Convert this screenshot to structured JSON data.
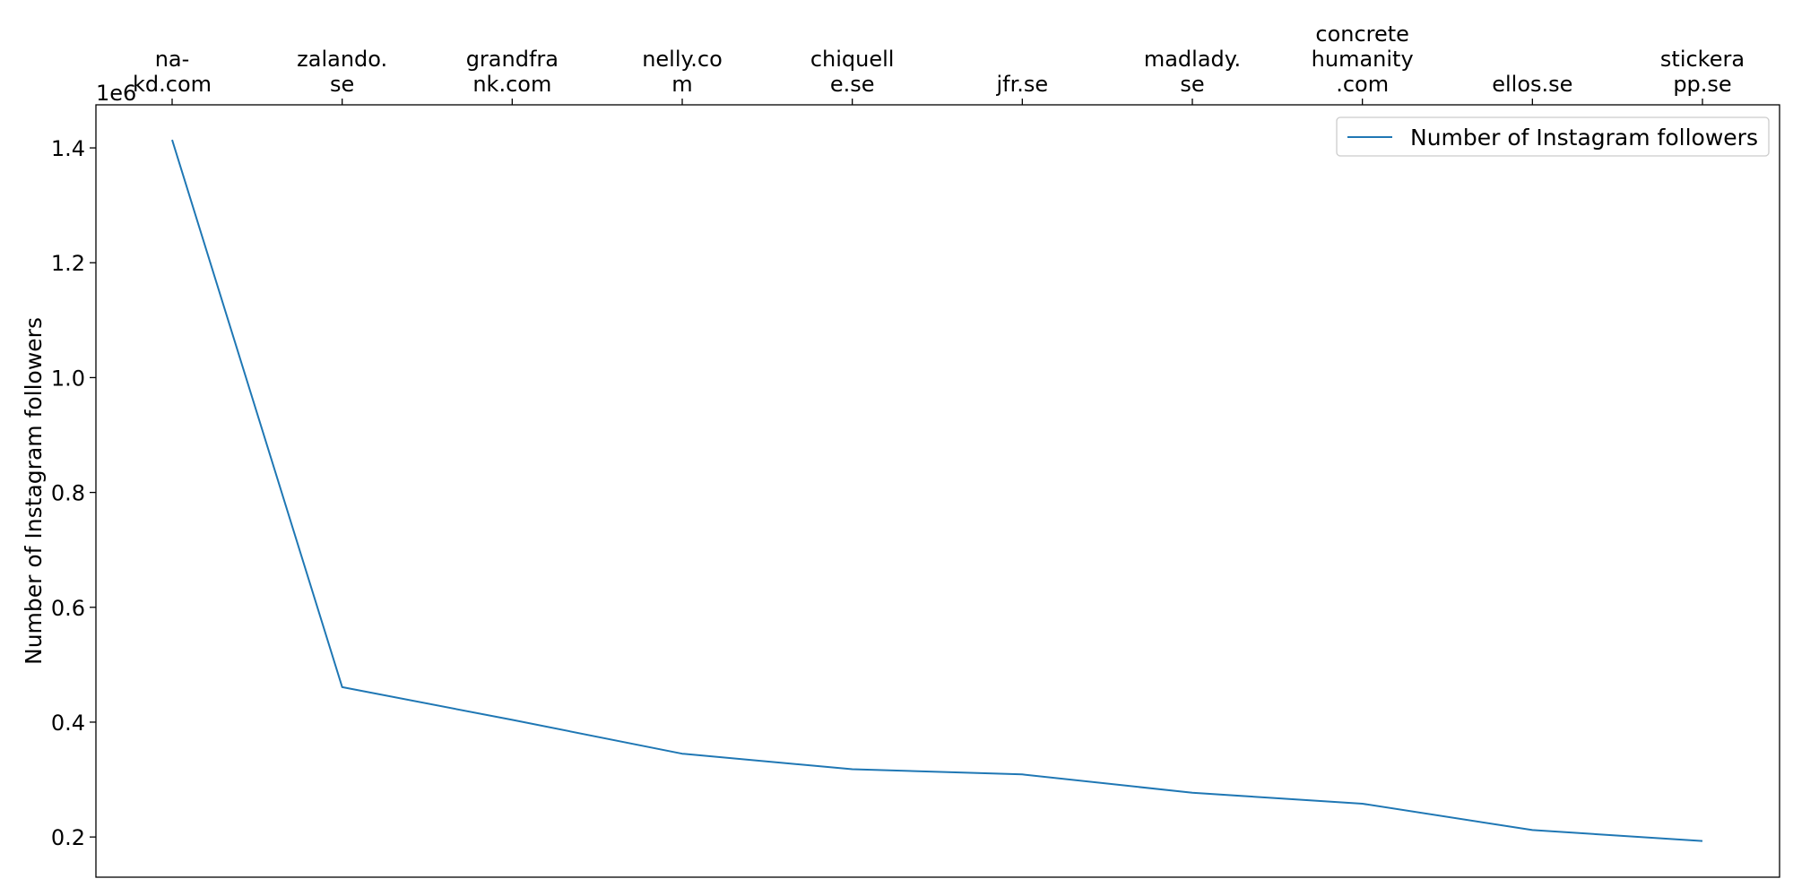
{
  "chart_data": {
    "type": "line",
    "categories": [
      [
        "na-",
        "kd.com"
      ],
      [
        "zalando.",
        "se"
      ],
      [
        "grandfra",
        "nk.com"
      ],
      [
        "nelly.co",
        "m"
      ],
      [
        "chiquell",
        "e.se"
      ],
      [
        "jfr.se"
      ],
      [
        "madlady.",
        "se"
      ],
      [
        "concrete",
        "humanity",
        ".com"
      ],
      [
        "ellos.se"
      ],
      [
        "stickera",
        "pp.se"
      ]
    ],
    "series": [
      {
        "name": "Number of Instagram followers",
        "color": "#1f77b4",
        "values": [
          1414000,
          461000,
          404000,
          345000,
          318000,
          309000,
          277000,
          258000,
          212000,
          193000
        ]
      }
    ],
    "xlabel": "",
    "ylabel": "Number of Instagram followers",
    "yticks": [
      0.2,
      0.4,
      0.6,
      0.8,
      1.0,
      1.2,
      1.4
    ],
    "ytick_labels": [
      "0.2",
      "0.4",
      "0.6",
      "0.8",
      "1.0",
      "1.2",
      "1.4"
    ],
    "y_scale_label": "1e6",
    "y_scale": 1000000,
    "ylim": [
      0.13,
      1.475
    ],
    "x_tick_position": "top",
    "legend_position": "upper right",
    "grid": false
  }
}
